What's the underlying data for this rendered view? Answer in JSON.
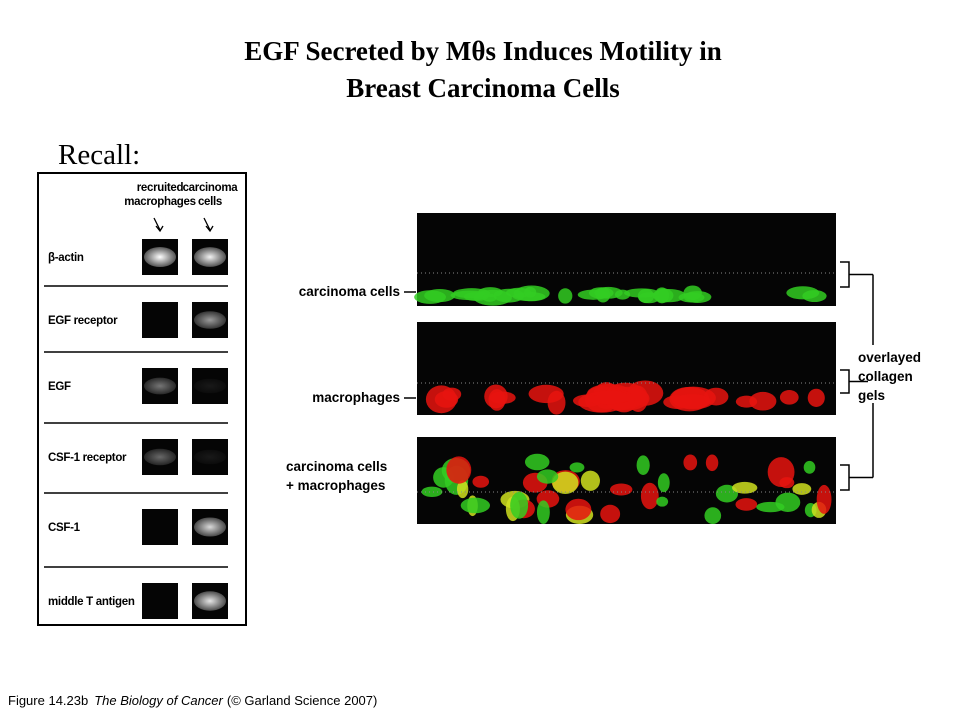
{
  "title": [
    "EGF Secreted by Mθs Induces Motility in",
    "Breast Carcinoma Cells"
  ],
  "recall": "Recall:",
  "gel": {
    "columns": [
      [
        "recruited",
        "macrophages"
      ],
      [
        "carcinoma",
        "cells"
      ]
    ],
    "rows": [
      "β-actin",
      "EGF receptor",
      "EGF",
      "CSF-1 receptor",
      "CSF-1",
      "middle T antigen"
    ]
  },
  "microscopy": {
    "panels": [
      [
        "carcinoma cells"
      ],
      [
        "macrophages"
      ],
      [
        "carcinoma cells",
        "+ macrophages"
      ]
    ],
    "bracket_label": [
      "overlayed",
      "collagen",
      "gels"
    ]
  },
  "caption": [
    "Figure 14.23b",
    "The Biology of Cancer",
    "(© Garland Science 2007)"
  ]
}
